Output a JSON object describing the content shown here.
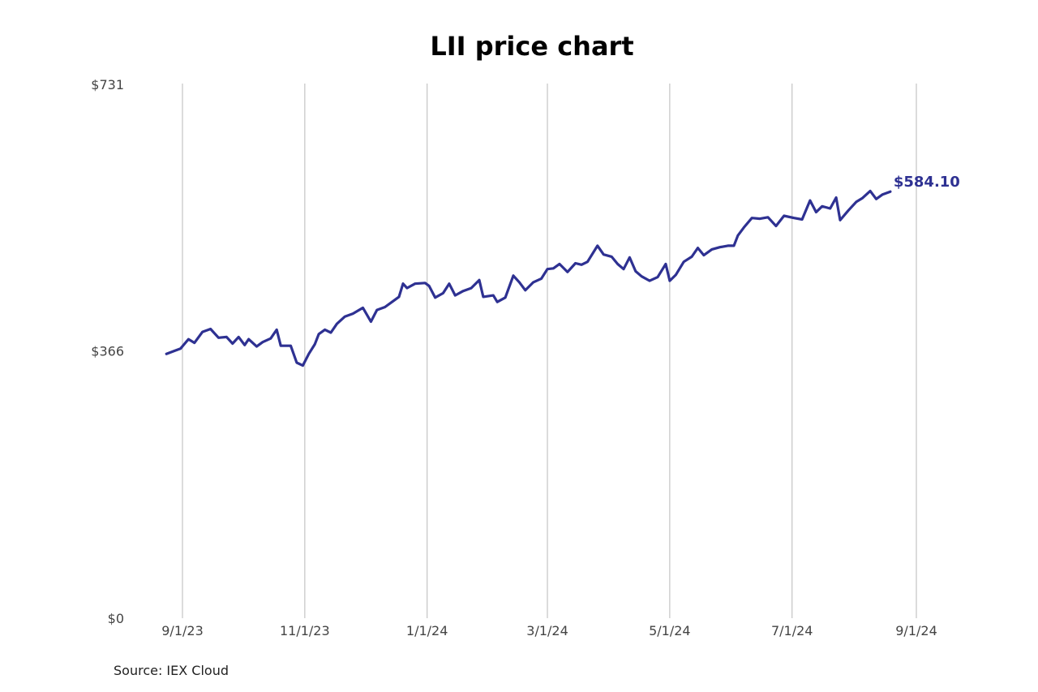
{
  "chart_data": {
    "type": "line",
    "title": "LII price chart",
    "source": "Source: IEX Cloud",
    "line_color": "#2e3192",
    "grid": "vertical",
    "ylim": [
      0,
      731
    ],
    "y_ticks": [
      {
        "value": 0,
        "label": "$0"
      },
      {
        "value": 366,
        "label": "$366"
      },
      {
        "value": 731,
        "label": "$731"
      }
    ],
    "x_ticks": [
      {
        "date": "2023-09-01",
        "label": "9/1/23"
      },
      {
        "date": "2023-11-01",
        "label": "11/1/23"
      },
      {
        "date": "2024-01-01",
        "label": "1/1/24"
      },
      {
        "date": "2024-03-01",
        "label": "3/1/24"
      },
      {
        "date": "2024-05-01",
        "label": "5/1/24"
      },
      {
        "date": "2024-07-01",
        "label": "7/1/24"
      },
      {
        "date": "2024-09-01",
        "label": "9/1/24"
      }
    ],
    "last_price_label": "$584.10",
    "series": [
      {
        "points": [
          [
            "2023-08-24",
            362
          ],
          [
            "2023-08-28",
            366
          ],
          [
            "2023-08-31",
            369
          ],
          [
            "2023-09-04",
            382
          ],
          [
            "2023-09-07",
            377
          ],
          [
            "2023-09-11",
            392
          ],
          [
            "2023-09-15",
            396
          ],
          [
            "2023-09-19",
            384
          ],
          [
            "2023-09-23",
            385
          ],
          [
            "2023-09-26",
            376
          ],
          [
            "2023-09-29",
            385
          ],
          [
            "2023-10-02",
            374
          ],
          [
            "2023-10-04",
            382
          ],
          [
            "2023-10-08",
            372
          ],
          [
            "2023-10-11",
            378
          ],
          [
            "2023-10-15",
            383
          ],
          [
            "2023-10-18",
            395
          ],
          [
            "2023-10-20",
            373
          ],
          [
            "2023-10-25",
            373
          ],
          [
            "2023-10-28",
            350
          ],
          [
            "2023-10-31",
            346
          ],
          [
            "2023-11-03",
            362
          ],
          [
            "2023-11-06",
            375
          ],
          [
            "2023-11-08",
            389
          ],
          [
            "2023-11-11",
            395
          ],
          [
            "2023-11-14",
            391
          ],
          [
            "2023-11-17",
            403
          ],
          [
            "2023-11-21",
            413
          ],
          [
            "2023-11-25",
            417
          ],
          [
            "2023-11-30",
            425
          ],
          [
            "2023-12-04",
            406
          ],
          [
            "2023-12-07",
            422
          ],
          [
            "2023-12-11",
            426
          ],
          [
            "2023-12-15",
            434
          ],
          [
            "2023-12-18",
            440
          ],
          [
            "2023-12-20",
            458
          ],
          [
            "2023-12-22",
            452
          ],
          [
            "2023-12-26",
            458
          ],
          [
            "2023-12-31",
            459
          ],
          [
            "2024-01-02",
            455
          ],
          [
            "2024-01-05",
            439
          ],
          [
            "2024-01-09",
            445
          ],
          [
            "2024-01-12",
            458
          ],
          [
            "2024-01-15",
            442
          ],
          [
            "2024-01-19",
            448
          ],
          [
            "2024-01-23",
            452
          ],
          [
            "2024-01-27",
            463
          ],
          [
            "2024-01-29",
            440
          ],
          [
            "2024-02-03",
            442
          ],
          [
            "2024-02-05",
            433
          ],
          [
            "2024-02-09",
            439
          ],
          [
            "2024-02-13",
            469
          ],
          [
            "2024-02-16",
            460
          ],
          [
            "2024-02-19",
            449
          ],
          [
            "2024-02-23",
            460
          ],
          [
            "2024-02-27",
            465
          ],
          [
            "2024-03-01",
            478
          ],
          [
            "2024-03-04",
            479
          ],
          [
            "2024-03-07",
            485
          ],
          [
            "2024-03-11",
            474
          ],
          [
            "2024-03-15",
            486
          ],
          [
            "2024-03-18",
            484
          ],
          [
            "2024-03-21",
            488
          ],
          [
            "2024-03-26",
            510
          ],
          [
            "2024-03-29",
            498
          ],
          [
            "2024-04-02",
            495
          ],
          [
            "2024-04-05",
            485
          ],
          [
            "2024-04-08",
            478
          ],
          [
            "2024-04-11",
            494
          ],
          [
            "2024-04-14",
            475
          ],
          [
            "2024-04-17",
            468
          ],
          [
            "2024-04-21",
            462
          ],
          [
            "2024-04-25",
            467
          ],
          [
            "2024-04-29",
            485
          ],
          [
            "2024-05-01",
            462
          ],
          [
            "2024-05-04",
            470
          ],
          [
            "2024-05-08",
            488
          ],
          [
            "2024-05-12",
            495
          ],
          [
            "2024-05-15",
            507
          ],
          [
            "2024-05-18",
            497
          ],
          [
            "2024-05-22",
            505
          ],
          [
            "2024-05-26",
            508
          ],
          [
            "2024-05-30",
            510
          ],
          [
            "2024-06-02",
            510
          ],
          [
            "2024-06-04",
            524
          ],
          [
            "2024-06-07",
            535
          ],
          [
            "2024-06-11",
            548
          ],
          [
            "2024-06-15",
            547
          ],
          [
            "2024-06-19",
            549
          ],
          [
            "2024-06-23",
            537
          ],
          [
            "2024-06-27",
            551
          ],
          [
            "2024-07-02",
            548
          ],
          [
            "2024-07-06",
            546
          ],
          [
            "2024-07-10",
            572
          ],
          [
            "2024-07-13",
            556
          ],
          [
            "2024-07-16",
            564
          ],
          [
            "2024-07-20",
            561
          ],
          [
            "2024-07-23",
            576
          ],
          [
            "2024-07-25",
            545
          ],
          [
            "2024-07-29",
            558
          ],
          [
            "2024-08-02",
            570
          ],
          [
            "2024-08-05",
            575
          ],
          [
            "2024-08-09",
            585
          ],
          [
            "2024-08-12",
            574
          ],
          [
            "2024-08-15",
            580
          ],
          [
            "2024-08-19",
            584.1
          ]
        ]
      }
    ]
  }
}
